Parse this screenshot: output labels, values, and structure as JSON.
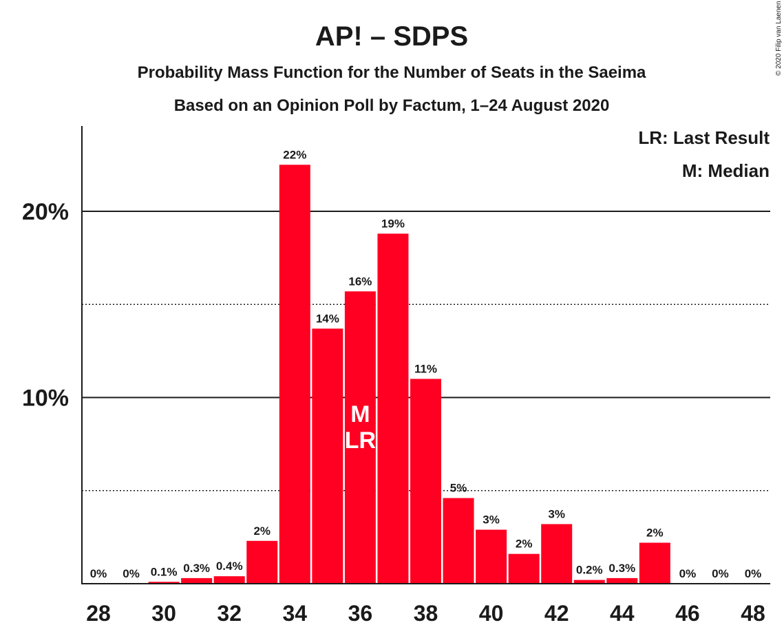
{
  "copyright": "© 2020 Filip van Laenen",
  "chart_data": {
    "type": "bar",
    "title": "AP! – SDPS",
    "subtitle": "Probability Mass Function for the Number of Seats in the Saeima",
    "subtitle2": "Based on an Opinion Poll by Factum, 1–24 August 2020",
    "categories": [
      28,
      29,
      30,
      31,
      32,
      33,
      34,
      35,
      36,
      37,
      38,
      39,
      40,
      41,
      42,
      43,
      44,
      45,
      46,
      47,
      48
    ],
    "values": [
      0,
      0,
      0.1,
      0.3,
      0.4,
      2.3,
      22.5,
      13.7,
      15.7,
      18.8,
      11.0,
      4.6,
      2.9,
      1.6,
      3.2,
      0.2,
      0.3,
      2.2,
      0,
      0,
      0
    ],
    "value_labels": [
      "0%",
      "0%",
      "0.1%",
      "0.3%",
      "0.4%",
      "2%",
      "22%",
      "14%",
      "16%",
      "19%",
      "11%",
      "5%",
      "3%",
      "2%",
      "3%",
      "0.2%",
      "0.3%",
      "2%",
      "0%",
      "0%",
      "0%"
    ],
    "x_tick_labels": [
      "28",
      "30",
      "32",
      "34",
      "36",
      "38",
      "40",
      "42",
      "44",
      "46",
      "48"
    ],
    "x_tick_values": [
      28,
      30,
      32,
      34,
      36,
      38,
      40,
      42,
      44,
      46,
      48
    ],
    "y_tick_labels": [
      "10%",
      "20%"
    ],
    "y_tick_values": [
      10,
      20
    ],
    "y_minor_gridlines": [
      5,
      15
    ],
    "ylim": [
      0,
      24.5
    ],
    "bar_color": "#ff0022",
    "median": 36,
    "last_result": 36,
    "markers": {
      "median": "M",
      "last_result": "LR"
    },
    "legend": {
      "last_result": "LR: Last Result",
      "median": "M: Median",
      "placement": "top-right"
    }
  }
}
